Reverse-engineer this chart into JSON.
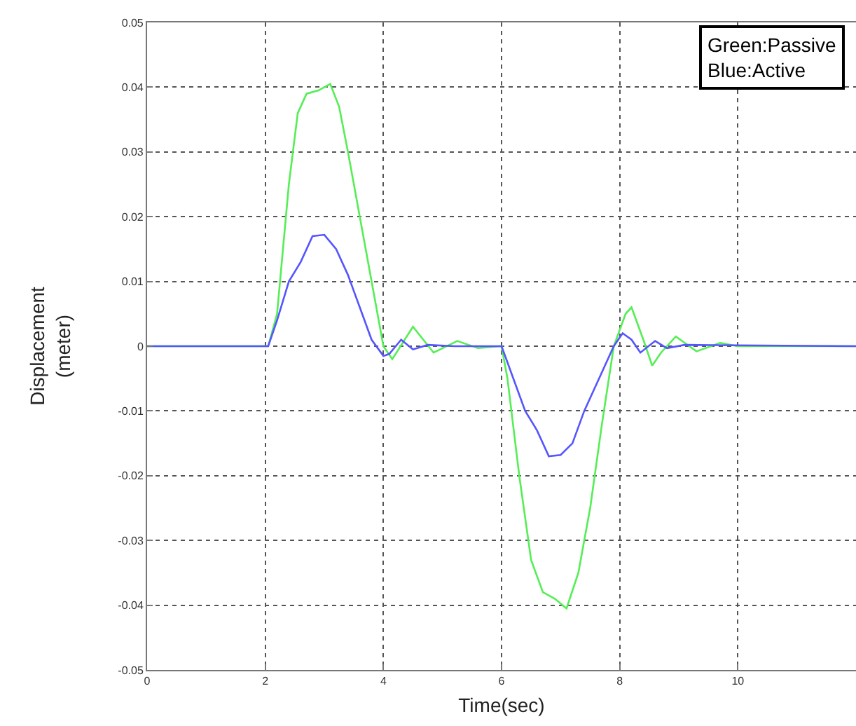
{
  "chart_data": {
    "type": "line",
    "xlabel": "Time(sec)",
    "ylabel": "Displacement\n(meter)",
    "xlim": [
      0,
      12
    ],
    "xticks": [
      0,
      2,
      4,
      6,
      8,
      10
    ],
    "ylim": [
      -0.05,
      0.05
    ],
    "yticks": [
      -0.05,
      -0.04,
      -0.03,
      -0.02,
      -0.01,
      0,
      0.01,
      0.02,
      0.03,
      0.04,
      0.05
    ],
    "grid": true,
    "line_style": "solid",
    "marker": "none",
    "annotations": [
      "Green:Passive",
      "Blue:Active"
    ],
    "series": [
      {
        "color": "#55ee55",
        "x": [
          0,
          2.05,
          2.2,
          2.4,
          2.55,
          2.7,
          2.9,
          3.1,
          3.25,
          3.4,
          3.6,
          3.8,
          4.0,
          4.15,
          4.5,
          4.85,
          5.25,
          5.6,
          6.0,
          6.1,
          6.3,
          6.5,
          6.7,
          6.9,
          7.1,
          7.3,
          7.5,
          7.7,
          7.9,
          8.1,
          8.2,
          8.4,
          8.55,
          8.7,
          8.95,
          9.3,
          9.7,
          10,
          12
        ],
        "values": [
          0,
          0,
          0.005,
          0.025,
          0.036,
          0.039,
          0.0395,
          0.0405,
          0.037,
          0.03,
          0.02,
          0.01,
          0.0,
          -0.002,
          0.003,
          -0.001,
          0.0008,
          -0.0003,
          0,
          -0.005,
          -0.02,
          -0.033,
          -0.038,
          -0.039,
          -0.0405,
          -0.035,
          -0.025,
          -0.012,
          0.0,
          0.005,
          0.006,
          0.001,
          -0.003,
          -0.001,
          0.0015,
          -0.0008,
          0.0005,
          0,
          0
        ]
      },
      {
        "color": "#5555ff",
        "x": [
          0,
          2.05,
          2.2,
          2.4,
          2.6,
          2.8,
          3.0,
          3.2,
          3.4,
          3.6,
          3.8,
          4.0,
          4.1,
          4.3,
          4.5,
          4.75,
          5.2,
          6.0,
          6.2,
          6.4,
          6.6,
          6.8,
          7.0,
          7.2,
          7.4,
          7.7,
          7.9,
          8.05,
          8.2,
          8.35,
          8.6,
          8.8,
          9.1,
          12
        ],
        "values": [
          0,
          0,
          0.004,
          0.01,
          0.013,
          0.017,
          0.0172,
          0.015,
          0.011,
          0.006,
          0.001,
          -0.0015,
          -0.0012,
          0.001,
          -0.0005,
          0.0002,
          0,
          0,
          -0.005,
          -0.01,
          -0.013,
          -0.017,
          -0.0168,
          -0.015,
          -0.01,
          -0.004,
          0,
          0.002,
          0.001,
          -0.001,
          0.0008,
          -0.0003,
          0.0002,
          0
        ]
      }
    ]
  }
}
